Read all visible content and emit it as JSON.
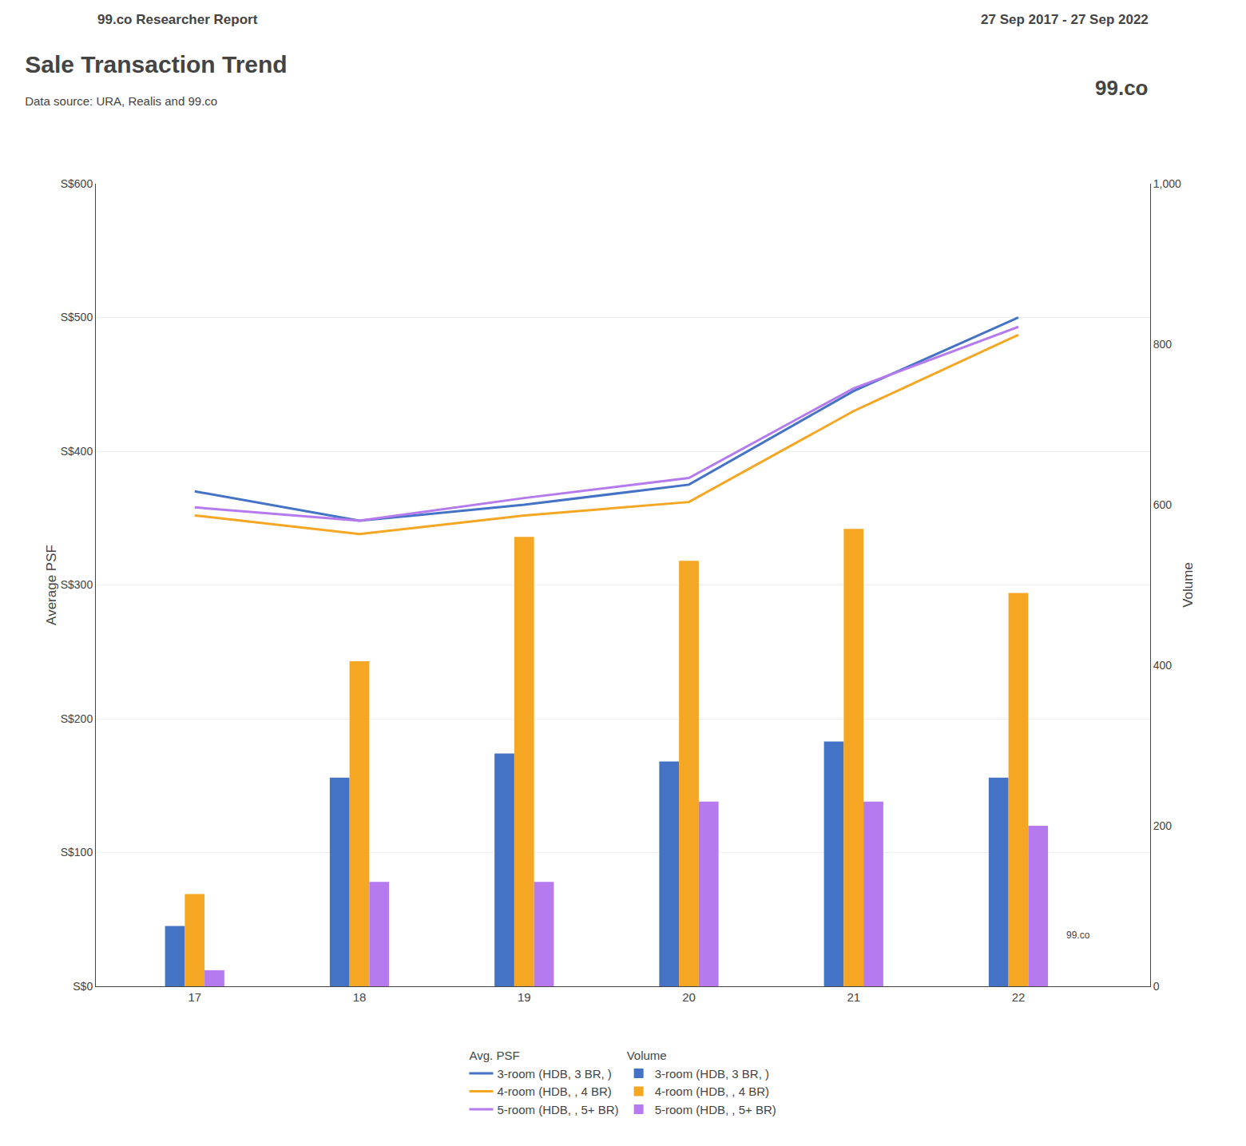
{
  "chart_data": {
    "type": "bar",
    "title": "Sale Transaction Trend",
    "subtitle": "Data source: URA, Realis and 99.co",
    "annotations": [
      "99.co Researcher Report",
      "27 Sep 2017 - 27 Sep 2022",
      "99.co",
      "99.co"
    ],
    "x": [
      17,
      18,
      19,
      20,
      21,
      22
    ],
    "xlim": [
      16.4,
      22.8
    ],
    "xticks": [
      17,
      18,
      19,
      20,
      21,
      22
    ],
    "ylabel": "Average PSF",
    "ylim": [
      0,
      600
    ],
    "yticks": [
      {
        "value": 0,
        "label": "S$0"
      },
      {
        "value": 100,
        "label": "S$100"
      },
      {
        "value": 200,
        "label": "S$200"
      },
      {
        "value": 300,
        "label": "S$300"
      },
      {
        "value": 400,
        "label": "S$400"
      },
      {
        "value": 500,
        "label": "S$500"
      },
      {
        "value": 600,
        "label": "S$600"
      }
    ],
    "y2label": "Volume",
    "y2lim": [
      0,
      1000
    ],
    "y2ticks": [
      0,
      200,
      400,
      600,
      800,
      {
        "value": 1000,
        "label": "1,000"
      }
    ],
    "grid": true,
    "series": [
      {
        "name": "3-room (HDB, 3 BR, )",
        "group": "Avg. PSF",
        "type": "line",
        "axis": "y",
        "color": "#4472c4",
        "values": [
          370,
          348,
          360,
          375,
          445,
          500
        ]
      },
      {
        "name": "4-room (HDB, , 4 BR)",
        "group": "Avg. PSF",
        "type": "line",
        "axis": "y",
        "color": "#f5a623",
        "values": [
          352,
          338,
          352,
          362,
          430,
          487
        ]
      },
      {
        "name": "5-room (HDB, , 5+ BR)",
        "group": "Avg. PSF",
        "type": "line",
        "axis": "y",
        "color": "#b57bee",
        "values": [
          358,
          348,
          365,
          380,
          447,
          493
        ]
      },
      {
        "name": "3-room (HDB, 3 BR, )",
        "group": "Volume",
        "type": "bar",
        "axis": "y2",
        "color": "#4472c4",
        "values": [
          75,
          260,
          290,
          280,
          305,
          260
        ]
      },
      {
        "name": "4-room (HDB, , 4 BR)",
        "group": "Volume",
        "type": "bar",
        "axis": "y2",
        "color": "#f5a623",
        "values": [
          115,
          405,
          560,
          530,
          570,
          490
        ]
      },
      {
        "name": "5-room (HDB, , 5+ BR)",
        "group": "Volume",
        "type": "bar",
        "axis": "y2",
        "color": "#b57bee",
        "values": [
          20,
          130,
          130,
          230,
          230,
          200
        ]
      }
    ]
  }
}
